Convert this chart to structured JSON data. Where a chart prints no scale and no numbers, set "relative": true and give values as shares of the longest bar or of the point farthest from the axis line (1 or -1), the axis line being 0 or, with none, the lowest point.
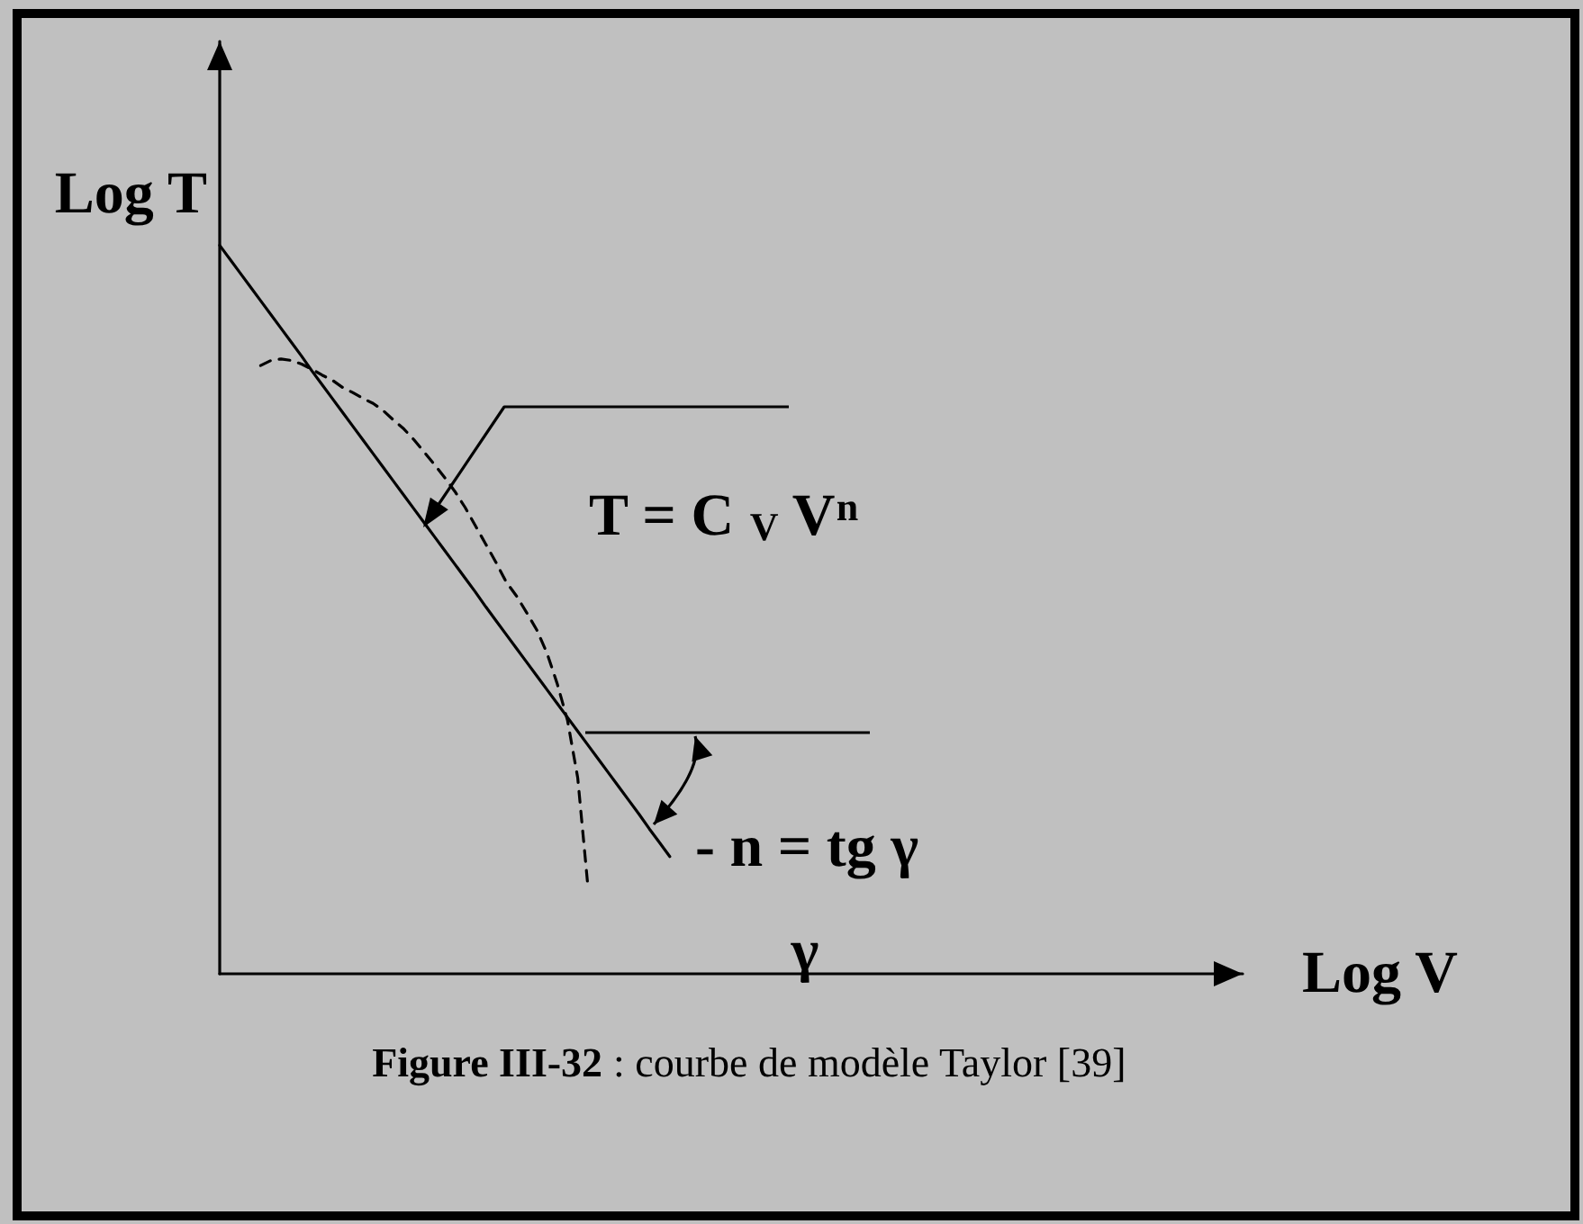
{
  "chart_data": {
    "type": "line",
    "title": "Figure III-32 : courbe de modèle Taylor [39]",
    "xlabel": "Log V",
    "ylabel": "Log T",
    "relative": true,
    "grid": false,
    "annotations": [
      "T = C $_{V}$ V$^{n}$",
      "- n = tg γ",
      "γ"
    ],
    "categories": [
      null,
      null,
      null,
      null,
      null,
      null,
      null,
      null,
      null,
      null,
      null,
      null,
      null,
      null,
      null,
      null,
      null,
      null,
      null,
      null,
      null,
      null,
      null,
      null,
      null,
      null,
      null,
      null,
      null,
      null,
      null,
      null,
      null,
      null,
      null,
      null,
      null,
      null,
      null,
      null,
      null,
      null,
      null,
      null,
      null,
      null,
      null,
      null,
      null,
      null,
      null,
      null,
      null,
      null,
      null,
      null,
      null,
      null,
      null,
      null,
      null,
      null,
      null,
      null,
      null,
      null,
      null,
      null,
      null,
      null,
      null,
      null,
      null,
      null,
      null,
      null,
      null,
      null,
      null,
      null,
      null,
      null,
      null,
      null,
      null,
      null,
      null,
      null,
      null,
      null,
      null,
      null,
      null,
      null,
      null,
      null,
      null,
      null,
      null,
      null,
      null
    ],
    "series": [
      {
        "color": "#000000",
        "line_style": "solid",
        "values": [
          1,
          0.981,
          0.962,
          0.943,
          0.924,
          0.905,
          0.886,
          0.867,
          0.848,
          0.828,
          0.809,
          0.79,
          0.771,
          0.752,
          0.733,
          0.714,
          0.695,
          0.676,
          0.657,
          0.638,
          0.619,
          0.6,
          0.581,
          0.562,
          0.543,
          0.524,
          0.504,
          0.485,
          0.466,
          0.447,
          0.428,
          0.409,
          0.39,
          0.371,
          0.352,
          0.333,
          0.314,
          0.295,
          0.276,
          0.257,
          0.238,
          0.219,
          0.199,
          0.18,
          0.161,
          null,
          null,
          null,
          null,
          null,
          null,
          null,
          null,
          null,
          null,
          null,
          null,
          null,
          null,
          null,
          null,
          null,
          null,
          null,
          null,
          null,
          null,
          null,
          null,
          null,
          null,
          null,
          null,
          null,
          null,
          null,
          null,
          null,
          null,
          null,
          null,
          null,
          null,
          null,
          null,
          null,
          null,
          null,
          null,
          null,
          null,
          null,
          null,
          null,
          null,
          null,
          null,
          null,
          null,
          null,
          null
        ]
      },
      {
        "color": "#000000",
        "line_style": "dashed",
        "values": [
          null,
          null,
          null,
          null,
          0.835,
          0.842,
          0.844,
          0.842,
          0.837,
          0.83,
          0.822,
          0.815,
          0.805,
          0.798,
          0.79,
          0.783,
          0.773,
          0.76,
          0.748,
          0.733,
          0.716,
          0.699,
          0.681,
          0.662,
          0.64,
          0.615,
          0.59,
          0.565,
          0.538,
          0.519,
          0.496,
          0.472,
          0.44,
          0.398,
          0.348,
          0.269,
          0.119,
          null,
          null,
          null,
          null,
          null,
          null,
          null,
          null,
          null,
          null,
          null,
          null,
          null,
          null,
          null,
          null,
          null,
          null,
          null,
          null,
          null,
          null,
          null,
          null,
          null,
          null,
          null,
          null,
          null,
          null,
          null,
          null,
          null,
          null,
          null,
          null,
          null,
          null,
          null,
          null,
          null,
          null,
          null,
          null,
          null,
          null,
          null,
          null,
          null,
          null,
          null,
          null,
          null,
          null,
          null,
          null,
          null,
          null,
          null,
          null,
          null,
          null,
          null,
          null
        ]
      }
    ]
  }
}
